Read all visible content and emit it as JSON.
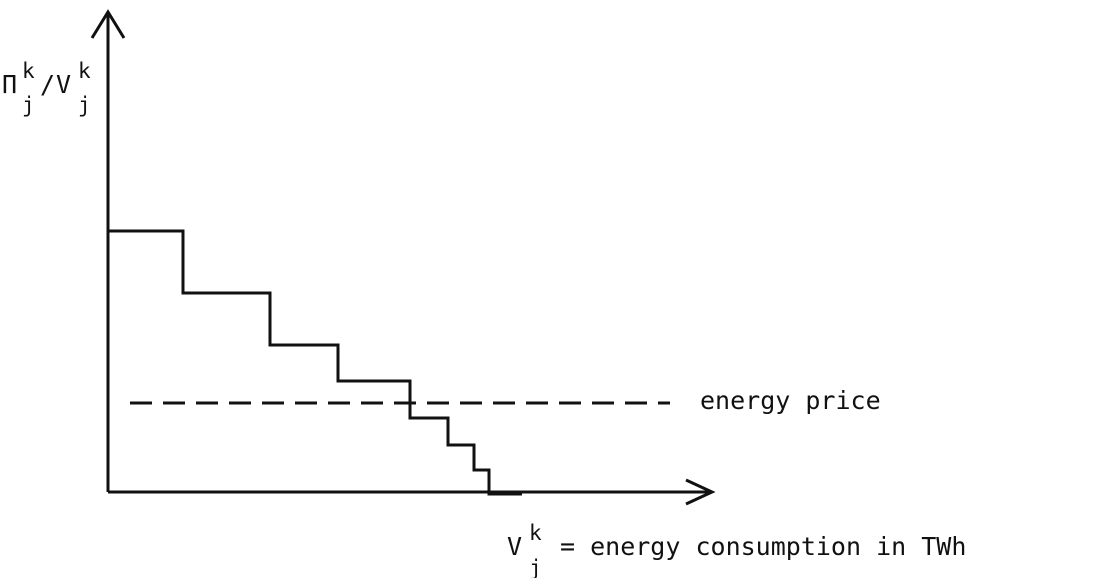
{
  "y_axis_label": {
    "base1": "Π",
    "sup1": "k",
    "sub1": "j",
    "slash": "/",
    "base2": "V",
    "sup2": "k",
    "sub2": "j"
  },
  "x_axis_label": {
    "base": "V",
    "sup": "k",
    "sub": "j",
    "text": "= energy consumption in TWh"
  },
  "price_line_label": "energy price",
  "colors": {
    "ink": "#111111",
    "background": "#ffffff"
  }
}
